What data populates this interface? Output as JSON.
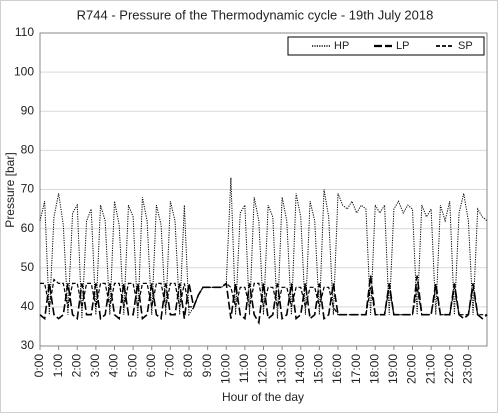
{
  "chart_data": {
    "type": "line",
    "title": "R744 - Pressure of the Thermodynamic cycle - 19th July 2018",
    "x_label": "Hour of the day",
    "y_label": "Pressure [bar]",
    "xlim": [
      0,
      24
    ],
    "ylim": [
      30,
      110
    ],
    "yticks": [
      30,
      40,
      50,
      60,
      70,
      80,
      90,
      100,
      110
    ],
    "xticks": [
      {
        "value": 0,
        "label": "0:00"
      },
      {
        "value": 1,
        "label": "1:00"
      },
      {
        "value": 2,
        "label": "2:00"
      },
      {
        "value": 3,
        "label": "3:00"
      },
      {
        "value": 4,
        "label": "4:00"
      },
      {
        "value": 5,
        "label": "5:00"
      },
      {
        "value": 6,
        "label": "6:00"
      },
      {
        "value": 7,
        "label": "7:00"
      },
      {
        "value": 8,
        "label": "8:00"
      },
      {
        "value": 9,
        "label": "9:00"
      },
      {
        "value": 10,
        "label": "10:00"
      },
      {
        "value": 11,
        "label": "11:00"
      },
      {
        "value": 12,
        "label": "12:00"
      },
      {
        "value": 13,
        "label": "13:00"
      },
      {
        "value": 14,
        "label": "14:00"
      },
      {
        "value": 15,
        "label": "15:00"
      },
      {
        "value": 16,
        "label": "16:00"
      },
      {
        "value": 17,
        "label": "17:00"
      },
      {
        "value": 18,
        "label": "18:00"
      },
      {
        "value": 19,
        "label": "19:00"
      },
      {
        "value": 20,
        "label": "20:00"
      },
      {
        "value": 21,
        "label": "21:00"
      },
      {
        "value": 22,
        "label": "22:00"
      },
      {
        "value": 23,
        "label": "23:00"
      }
    ],
    "grid": true,
    "legend": "top-right",
    "x": [
      0,
      0.25,
      0.5,
      0.75,
      1,
      1.25,
      1.5,
      1.75,
      2,
      2.25,
      2.5,
      2.75,
      3,
      3.25,
      3.5,
      3.75,
      4,
      4.25,
      4.5,
      4.75,
      5,
      5.25,
      5.5,
      5.75,
      6,
      6.25,
      6.5,
      6.75,
      7,
      7.25,
      7.5,
      7.75,
      8,
      8.25,
      8.5,
      8.75,
      9,
      9.25,
      9.5,
      9.75,
      10,
      10.25,
      10.5,
      10.75,
      11,
      11.25,
      11.5,
      11.75,
      12,
      12.25,
      12.5,
      12.75,
      13,
      13.25,
      13.5,
      13.75,
      14,
      14.25,
      14.5,
      14.75,
      15,
      15.25,
      15.5,
      15.75,
      16,
      16.25,
      16.5,
      16.75,
      17,
      17.25,
      17.5,
      17.75,
      18,
      18.25,
      18.5,
      18.75,
      19,
      19.25,
      19.5,
      19.75,
      20,
      20.25,
      20.5,
      20.75,
      21,
      21.25,
      21.5,
      21.75,
      22,
      22.25,
      22.5,
      22.75,
      23,
      23.25,
      23.5,
      23.75,
      24
    ],
    "series": [
      {
        "name": "HP",
        "color": "#000000",
        "style": "dotted",
        "values": [
          62,
          67,
          38,
          63,
          69,
          61,
          38,
          64,
          66,
          37,
          62,
          65,
          38,
          66,
          62,
          38,
          67,
          61,
          38,
          66,
          63,
          37,
          68,
          62,
          38,
          66,
          61,
          38,
          67,
          62,
          38,
          66,
          38,
          40,
          43,
          45,
          45,
          45,
          45,
          45,
          46,
          73,
          38,
          64,
          66,
          38,
          68,
          62,
          38,
          66,
          63,
          37,
          68,
          62,
          38,
          69,
          63,
          38,
          67,
          62,
          38,
          70,
          63,
          38,
          69,
          66,
          65,
          67,
          64,
          66,
          65,
          38,
          66,
          64,
          66,
          38,
          65,
          67,
          64,
          66,
          65,
          38,
          66,
          63,
          65,
          38,
          66,
          62,
          67,
          38,
          64,
          69,
          62,
          38,
          65,
          63,
          62
        ]
      },
      {
        "name": "LP",
        "color": "#000000",
        "style": "long-dash",
        "values": [
          38,
          37,
          46,
          38,
          37,
          38,
          46,
          38,
          37,
          46,
          38,
          38,
          46,
          37,
          38,
          46,
          38,
          37,
          46,
          38,
          38,
          46,
          37,
          38,
          46,
          38,
          37,
          46,
          38,
          38,
          46,
          37,
          46,
          40,
          43,
          45,
          45,
          45,
          45,
          45,
          46,
          37,
          46,
          38,
          37,
          46,
          38,
          36,
          46,
          37,
          38,
          46,
          37,
          38,
          46,
          37,
          38,
          46,
          37,
          38,
          46,
          37,
          38,
          46,
          38,
          38,
          38,
          38,
          38,
          38,
          38,
          48,
          38,
          38,
          38,
          46,
          38,
          38,
          38,
          38,
          38,
          48,
          38,
          38,
          38,
          46,
          38,
          38,
          38,
          46,
          38,
          37,
          38,
          46,
          38,
          37,
          38
        ]
      },
      {
        "name": "SP",
        "color": "#000000",
        "style": "dashed",
        "values": [
          46,
          46,
          40,
          47,
          46,
          46,
          40,
          46,
          46,
          40,
          46,
          46,
          40,
          46,
          46,
          40,
          46,
          46,
          40,
          46,
          46,
          40,
          46,
          46,
          40,
          46,
          46,
          40,
          46,
          46,
          40,
          46,
          40,
          40,
          43,
          45,
          45,
          45,
          45,
          45,
          46,
          45,
          40,
          45,
          45,
          40,
          46,
          46,
          40,
          45,
          45,
          40,
          45,
          45,
          40,
          45,
          45,
          40,
          45,
          45,
          40,
          45,
          45,
          40,
          38,
          38,
          38,
          38,
          38,
          38,
          38,
          45,
          38,
          38,
          38,
          45,
          38,
          38,
          38,
          38,
          38,
          45,
          38,
          38,
          38,
          45,
          38,
          38,
          38,
          45,
          38,
          38,
          38,
          45,
          38,
          38,
          38
        ]
      }
    ]
  }
}
